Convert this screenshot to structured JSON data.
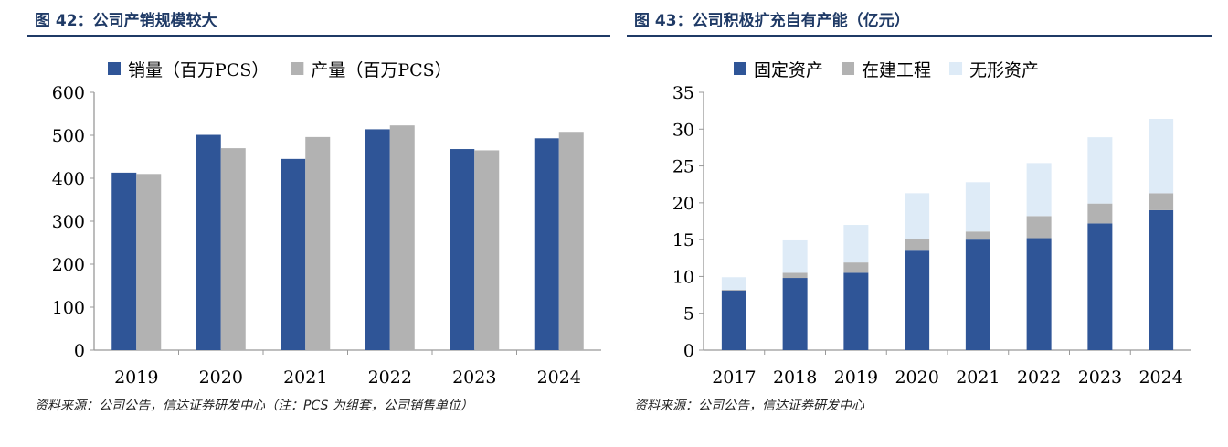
{
  "left": {
    "title": "图 42：公司产销规模较大",
    "source": "资料来源：公司公告，信达证券研发中心（注：PCS 为组套，公司销售单位）"
  },
  "right": {
    "title": "图 43：公司积极扩充自有产能（亿元）",
    "source": "资料来源：公司公告，信达证券研发中心"
  },
  "chart_data": [
    {
      "type": "bar",
      "categories": [
        "2019",
        "2020",
        "2021",
        "2022",
        "2023",
        "2024"
      ],
      "series": [
        {
          "name": "销量（百万PCS）",
          "color": "#2f5597",
          "values": [
            413,
            501,
            445,
            514,
            468,
            493
          ]
        },
        {
          "name": "产量（百万PCS）",
          "color": "#b2b2b2",
          "values": [
            410,
            470,
            496,
            523,
            465,
            508
          ]
        }
      ],
      "ylim": [
        0,
        600
      ],
      "yticks": [
        "0",
        "100",
        "200",
        "300",
        "400",
        "500",
        "600"
      ],
      "grid": false,
      "legend": "top"
    },
    {
      "type": "bar",
      "stacked": true,
      "categories": [
        "2017",
        "2018",
        "2019",
        "2020",
        "2021",
        "2022",
        "2023",
        "2024"
      ],
      "series": [
        {
          "name": "固定资产",
          "color": "#2f5597",
          "values": [
            8.1,
            9.8,
            10.5,
            13.5,
            15.0,
            15.2,
            17.2,
            19.0
          ]
        },
        {
          "name": "在建工程",
          "color": "#b2b2b2",
          "values": [
            0.1,
            0.7,
            1.4,
            1.6,
            1.1,
            3.0,
            2.7,
            2.3
          ]
        },
        {
          "name": "无形资产",
          "color": "#deebf7",
          "values": [
            1.7,
            4.4,
            5.1,
            6.2,
            6.7,
            7.2,
            9.0,
            10.1
          ]
        }
      ],
      "ylim": [
        0,
        35
      ],
      "yticks": [
        "0",
        "5",
        "10",
        "15",
        "20",
        "25",
        "30",
        "35"
      ],
      "grid": false,
      "legend": "top"
    }
  ]
}
